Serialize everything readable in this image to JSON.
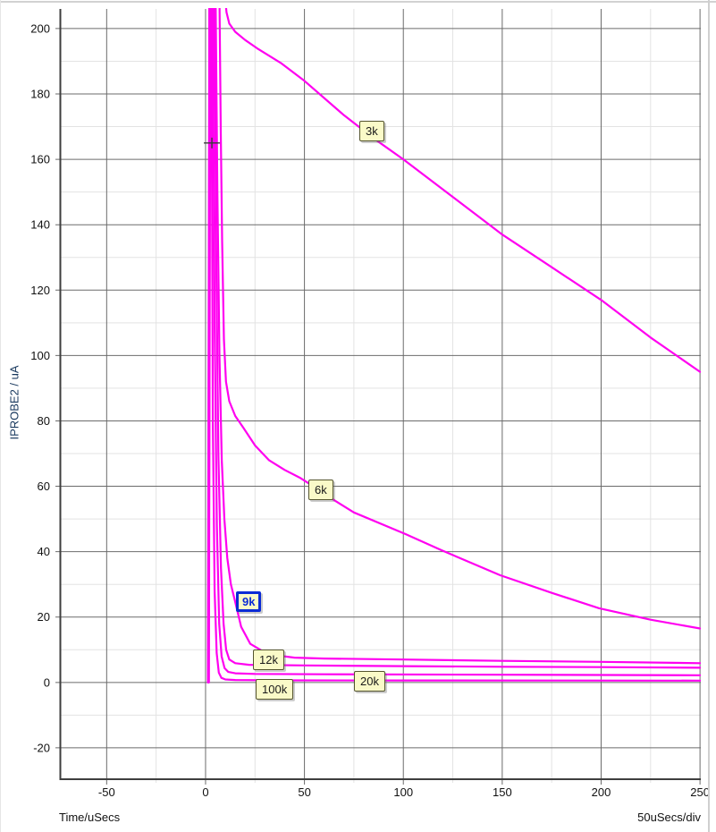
{
  "window": {
    "background": "#ffffff"
  },
  "chart_data": {
    "type": "line",
    "title": "",
    "xlabel": "Time/uSecs",
    "ylabel": "IPROBE2 / uA",
    "x_scale_label": "50uSecs/div",
    "xlim": [
      -73.2,
      250.4
    ],
    "ylim": [
      -29.6,
      206
    ],
    "x_ticks": [
      -50,
      0,
      50,
      100,
      150,
      200,
      250
    ],
    "y_ticks": [
      -20,
      0,
      20,
      40,
      60,
      80,
      100,
      120,
      140,
      160,
      180,
      200
    ],
    "x_minor_step": 25,
    "y_minor_step": 10,
    "grid": true,
    "legend_position": "inline-labels",
    "cursor_cross": {
      "x": 3.2,
      "y": 165
    },
    "series": [
      {
        "name": "3k",
        "selected": false,
        "label_anchor": [
          77.8,
          171.8
        ],
        "points": [
          [
            1.2,
            0
          ],
          [
            1.9,
            210
          ],
          [
            9.8,
            210
          ],
          [
            10.6,
            205
          ],
          [
            12,
            201.5
          ],
          [
            15,
            199
          ],
          [
            20,
            196.5
          ],
          [
            26,
            194
          ],
          [
            38,
            189.5
          ],
          [
            50,
            184
          ],
          [
            70,
            173.5
          ],
          [
            86,
            166
          ],
          [
            100,
            160
          ],
          [
            125,
            148.5
          ],
          [
            150,
            137
          ],
          [
            175,
            127
          ],
          [
            200,
            117
          ],
          [
            225,
            105.5
          ],
          [
            250,
            95
          ]
        ]
      },
      {
        "name": "6k",
        "selected": false,
        "label_anchor": [
          52.0,
          62.1
        ],
        "points": [
          [
            1.3,
            0
          ],
          [
            2.0,
            210
          ],
          [
            7.0,
            210
          ],
          [
            7.7,
            168
          ],
          [
            8.4,
            135
          ],
          [
            9.3,
            105
          ],
          [
            10.3,
            92
          ],
          [
            12,
            86
          ],
          [
            15,
            81.5
          ],
          [
            19,
            78
          ],
          [
            25,
            72.5
          ],
          [
            32,
            68
          ],
          [
            40,
            65
          ],
          [
            48,
            62.5
          ],
          [
            57,
            59
          ],
          [
            63,
            56.5
          ],
          [
            75,
            52
          ],
          [
            101,
            45.4
          ],
          [
            119,
            40.5
          ],
          [
            149,
            32.8
          ],
          [
            175,
            27.4
          ],
          [
            199,
            22.7
          ],
          [
            225,
            19.2
          ],
          [
            250,
            16.5
          ]
        ]
      },
      {
        "name": "9k",
        "selected": true,
        "label_anchor": [
          15.4,
          27.9
        ],
        "points": [
          [
            1.4,
            0
          ],
          [
            2.1,
            210
          ],
          [
            5.1,
            210
          ],
          [
            6.0,
            150
          ],
          [
            7.0,
            100
          ],
          [
            8.2,
            68
          ],
          [
            9.5,
            50
          ],
          [
            11,
            38
          ],
          [
            12.8,
            30
          ],
          [
            14.9,
            24.9
          ],
          [
            18,
            17
          ],
          [
            22.6,
            11.8
          ],
          [
            31.6,
            8.6
          ],
          [
            45,
            7.6
          ],
          [
            60,
            7.3
          ],
          [
            100,
            7.0
          ],
          [
            150,
            6.6
          ],
          [
            200,
            6.3
          ],
          [
            250,
            5.9
          ]
        ]
      },
      {
        "name": "12k",
        "selected": false,
        "label_anchor": [
          24.0,
          10.1
        ],
        "points": [
          [
            1.5,
            0
          ],
          [
            2.2,
            210
          ],
          [
            4.4,
            210
          ],
          [
            5.4,
            130
          ],
          [
            6.5,
            70
          ],
          [
            7.8,
            35
          ],
          [
            9.1,
            18
          ],
          [
            10.4,
            10
          ],
          [
            12,
            7
          ],
          [
            15,
            5.9
          ],
          [
            22,
            5.4
          ],
          [
            50,
            5.2
          ],
          [
            100,
            5.0
          ],
          [
            150,
            4.8
          ],
          [
            200,
            4.7
          ],
          [
            250,
            4.5
          ]
        ]
      },
      {
        "name": "20k",
        "selected": false,
        "label_anchor": [
          75.1,
          3.6
        ],
        "points": [
          [
            1.6,
            0
          ],
          [
            2.3,
            210
          ],
          [
            3.6,
            210
          ],
          [
            4.6,
            110
          ],
          [
            5.7,
            48
          ],
          [
            6.9,
            18
          ],
          [
            8.1,
            8
          ],
          [
            9.6,
            4.4
          ],
          [
            11.5,
            3.2
          ],
          [
            15,
            2.8
          ],
          [
            25,
            2.6
          ],
          [
            60,
            2.5
          ],
          [
            150,
            2.35
          ],
          [
            250,
            2.2
          ]
        ]
      },
      {
        "name": "100k",
        "selected": false,
        "label_anchor": [
          25.3,
          1.1
        ],
        "points": [
          [
            1.7,
            0
          ],
          [
            2.4,
            210
          ],
          [
            2.9,
            210
          ],
          [
            3.7,
            80
          ],
          [
            4.6,
            28
          ],
          [
            5.6,
            9
          ],
          [
            6.7,
            3
          ],
          [
            8,
            1.4
          ],
          [
            10,
            0.9
          ],
          [
            15,
            0.75
          ],
          [
            40,
            0.65
          ],
          [
            100,
            0.6
          ],
          [
            175,
            0.58
          ],
          [
            250,
            0.55
          ]
        ]
      }
    ],
    "colors": {
      "curve": "#ff00f0",
      "grid_major": "#6b6b6b",
      "grid_minor": "#e3e3e3",
      "axis": "#3e3e3e",
      "tick_text": "#111111",
      "label_bg": "#fafac8",
      "label_border": "#55552f",
      "selected_border": "#0b2bd6",
      "y_title": "#17375d",
      "window_border": "#d2d2d2"
    }
  }
}
